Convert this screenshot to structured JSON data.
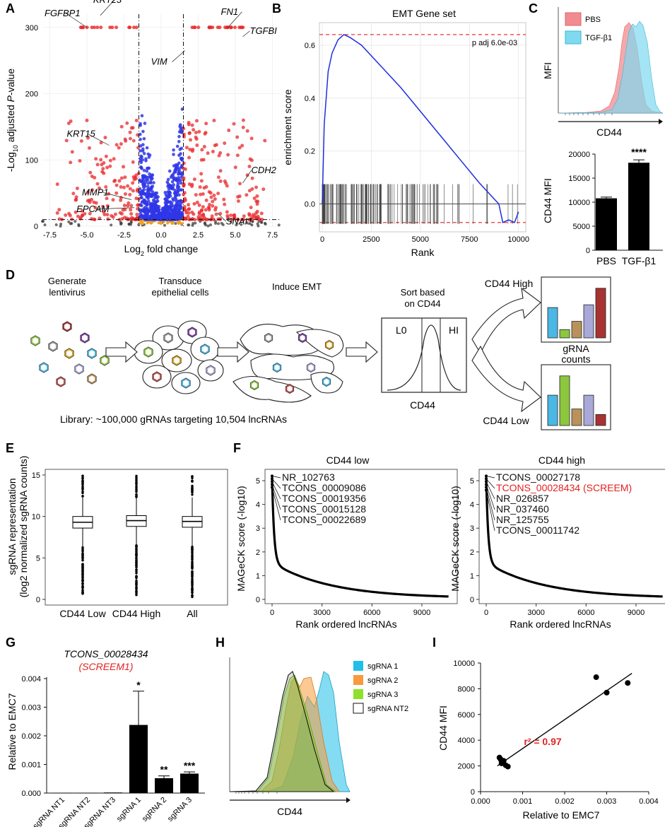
{
  "panels": [
    "A",
    "B",
    "C",
    "D",
    "E",
    "F",
    "G",
    "H",
    "I"
  ],
  "chart_data": [
    {
      "panel": "A",
      "type": "scatter",
      "title": "",
      "xlabel_main": "Log",
      "xlabel_sub": "2",
      "xlabel_rest": " fold change",
      "ylabel_pre": "-Log",
      "ylabel_sub": "10",
      "ylabel_mid": " adjusted ",
      "ylabel_italic": "P",
      "ylabel_post": "-value",
      "xlim": [
        -8,
        8
      ],
      "ylim": [
        0,
        320
      ],
      "xticks": [
        "-7.5",
        "-5.0",
        "-2.5",
        "0.0",
        "2.5",
        "5.0",
        "7.5"
      ],
      "xtick_values": [
        -7.5,
        -5,
        -2.5,
        0,
        2.5,
        5,
        7.5
      ],
      "yticks": [
        "0",
        "100",
        "200",
        "300"
      ],
      "ytick_values": [
        0,
        100,
        200,
        300
      ],
      "thresholds": {
        "x": [
          -1.5,
          1.5
        ],
        "y": 10
      },
      "labels": [
        {
          "text": "FGFBP1",
          "x": -5.0,
          "y": 300
        },
        {
          "text": "KRT23",
          "x": -4.1,
          "y": 318
        },
        {
          "text": "FN1",
          "x": 4.5,
          "y": 300
        },
        {
          "text": "TGFBI",
          "x": 5.5,
          "y": 286
        },
        {
          "text": "VIM",
          "x": 1.6,
          "y": 265
        },
        {
          "text": "KRT15",
          "x": -3.5,
          "y": 122
        },
        {
          "text": "CDH2",
          "x": 5.5,
          "y": 65
        },
        {
          "text": "MMP1",
          "x": -2.0,
          "y": 40
        },
        {
          "text": "EPCAM",
          "x": -1.8,
          "y": 28
        },
        {
          "text": "SNAI1",
          "x": 3.8,
          "y": 20
        }
      ],
      "colors": {
        "up_down": "#e8282b",
        "significant": "#2f36e6",
        "ns": "#333333",
        "low": "#f2a21a"
      }
    },
    {
      "panel": "B",
      "type": "line",
      "title": "EMT Gene set",
      "xlabel": "Rank",
      "ylabel": "enrichment score",
      "xlim": [
        0,
        10300
      ],
      "ylim": [
        -0.1,
        0.68
      ],
      "xticks": [
        "0",
        "2500",
        "5000",
        "7500",
        "10000"
      ],
      "xtick_values": [
        0,
        2500,
        5000,
        7500,
        10000
      ],
      "yticks": [
        "0.0",
        "0.2",
        "0.4",
        "0.6"
      ],
      "ytick_values": [
        0,
        0.2,
        0.4,
        0.6
      ],
      "annotation": "p adj 6.0e-03",
      "max_es": 0.64,
      "min_es": -0.07,
      "curve_x": [
        0,
        100,
        300,
        500,
        800,
        1100,
        1400,
        2000,
        3000,
        4000,
        5000,
        6000,
        7000,
        8000,
        9000,
        9200,
        9500,
        9800,
        10000
      ],
      "curve_y": [
        0,
        0.3,
        0.5,
        0.57,
        0.62,
        0.64,
        0.63,
        0.6,
        0.52,
        0.44,
        0.35,
        0.26,
        0.17,
        0.08,
        0.0,
        -0.07,
        -0.06,
        -0.07,
        -0.03
      ]
    },
    {
      "panel": "C-top",
      "type": "histogram",
      "xlabel": "CD44",
      "ylabel": "MFI",
      "series": [
        {
          "name": "PBS",
          "color": "#f28b8f"
        },
        {
          "name": "TGF-β1",
          "color": "#7fd9ef"
        }
      ]
    },
    {
      "panel": "C-bottom",
      "type": "bar",
      "categories": [
        "PBS",
        "TGF-β1"
      ],
      "values": [
        10800,
        18200
      ],
      "errors": [
        250,
        600
      ],
      "ylabel": "CD44 MFI",
      "ylim": [
        0,
        20000
      ],
      "yticks": [
        "0",
        "5000",
        "10000",
        "15000",
        "20000"
      ],
      "ytick_values": [
        0,
        5000,
        10000,
        15000,
        20000
      ],
      "significance": "****"
    },
    {
      "panel": "E",
      "type": "boxplot",
      "categories": [
        "CD44 Low",
        "CD44 High",
        "All"
      ],
      "medians": [
        9.3,
        9.5,
        9.4
      ],
      "q1": [
        8.6,
        8.8,
        8.7
      ],
      "q3": [
        10.0,
        10.1,
        10.0
      ],
      "whisker_low": [
        6.4,
        6.5,
        6.4
      ],
      "whisker_high": [
        12.3,
        12.3,
        12.3
      ],
      "outlier_range": [
        [
          0.5,
          6.4
        ],
        [
          0.5,
          6.5
        ],
        [
          0.3,
          6.4
        ]
      ],
      "ylabel_line1": "sgRNA representation",
      "ylabel_line2": "(log2 normalized sgRNA counts)",
      "ylim": [
        0,
        15
      ],
      "yticks": [
        "0",
        "5",
        "10",
        "15"
      ],
      "ytick_values": [
        0,
        5,
        10,
        15
      ]
    },
    {
      "panel": "F-low",
      "type": "line",
      "title": "CD44 low",
      "xlabel": "Rank ordered lncRNAs",
      "ylabel": "MAGeCK score (-log10)",
      "xlim": [
        0,
        10700
      ],
      "ylim": [
        0,
        5.3
      ],
      "xticks": [
        "0",
        "3000",
        "6000",
        "9000"
      ],
      "xtick_values": [
        0,
        3000,
        6000,
        9000
      ],
      "yticks": [
        "0",
        "1",
        "2",
        "3",
        "4",
        "5"
      ],
      "ytick_values": [
        0,
        1,
        2,
        3,
        4,
        5
      ],
      "labels": [
        "NR_102763",
        "TCONS_00009086",
        "TCONS_00019356",
        "TCONS_00015128",
        "TCONS_00022689"
      ]
    },
    {
      "panel": "F-high",
      "type": "line",
      "title": "CD44 high",
      "xlabel": "Rank ordered lncRNAs",
      "ylabel": "MAGeCK score (-log10)",
      "xlim": [
        0,
        10700
      ],
      "ylim": [
        0,
        5.3
      ],
      "xticks": [
        "0",
        "3000",
        "6000",
        "9000"
      ],
      "xtick_values": [
        0,
        3000,
        6000,
        9000
      ],
      "yticks": [
        "0",
        "1",
        "2",
        "3",
        "4",
        "5"
      ],
      "ytick_values": [
        0,
        1,
        2,
        3,
        4,
        5
      ],
      "labels": [
        "TCONS_00027178",
        "TCONS_00028434 (SCREEM)",
        "NR_026857",
        "NR_037460",
        "NR_125755",
        "TCONS_00011742"
      ],
      "highlight_index": 1,
      "highlight_color": "#e32222"
    },
    {
      "panel": "G",
      "type": "bar",
      "title": "TCONS_00028434",
      "subtitle": "(SCREEM1)",
      "subtitle_color": "#e32222",
      "categories": [
        "sgRNA NT1",
        "sgRNA NT2",
        "sgRNA NT3",
        "sgRNA 1",
        "sgRNA 2",
        "sgRNA 3"
      ],
      "values": [
        1e-05,
        1e-05,
        2e-05,
        0.00238,
        0.00052,
        0.00068
      ],
      "errors": [
        0,
        0,
        0,
        0.00118,
        8e-05,
        6e-05
      ],
      "significance": [
        "",
        "",
        "",
        "*",
        "**",
        "***"
      ],
      "ylabel": "Relative to EMC7",
      "ylim": [
        0,
        0.004
      ],
      "yticks": [
        "0.000",
        "0.001",
        "0.002",
        "0.003",
        "0.004"
      ],
      "ytick_values": [
        0,
        0.001,
        0.002,
        0.003,
        0.004
      ]
    },
    {
      "panel": "H",
      "type": "histogram",
      "xlabel": "CD44",
      "series": [
        {
          "name": "sgRNA 1",
          "color": "#1fbfea"
        },
        {
          "name": "sgRNA 2",
          "color": "#f99a3d"
        },
        {
          "name": "sgRNA 3",
          "color": "#8ee02a"
        },
        {
          "name": "sgRNA NT2",
          "color": "#ffffff"
        }
      ]
    },
    {
      "panel": "I",
      "type": "scatter",
      "xlabel": "Relative to EMC7",
      "ylabel": "CD44 MFI",
      "annotation": "r² = 0.97",
      "annotation_color": "#e32222",
      "x": [
        0.00275,
        0.003,
        0.0035,
        0.00045,
        0.0005,
        0.00055,
        0.0006,
        0.00065,
        0.00048
      ],
      "y": [
        8900,
        7700,
        8450,
        2650,
        2200,
        2400,
        2050,
        1950,
        2500
      ],
      "fit": {
        "x": [
          0.0004,
          0.0036
        ],
        "y": [
          2000,
          9200
        ]
      },
      "xlim": [
        0,
        0.004
      ],
      "ylim": [
        0,
        10000
      ],
      "xticks": [
        "0.000",
        "0.001",
        "0.002",
        "0.003",
        "0.004"
      ],
      "xtick_values": [
        0,
        0.001,
        0.002,
        0.003,
        0.004
      ],
      "yticks": [
        "0",
        "2000",
        "4000",
        "6000",
        "8000",
        "10000"
      ],
      "ytick_values": [
        0,
        2000,
        4000,
        6000,
        8000,
        10000
      ]
    }
  ],
  "schematic": {
    "steps": [
      "Generate",
      "lentivirus",
      "Transduce",
      "epithelial cells",
      "Induce EMT",
      "Sort based",
      "on CD44"
    ],
    "sort_low": "L0",
    "sort_high": "HI",
    "sort_axis": "CD44",
    "high_label": "CD44 High",
    "low_label": "CD44 Low",
    "counts_label_1": "gRNA",
    "counts_label_2": "counts",
    "library": "Library: ~100,000 gRNAs targeting 10,504 lncRNAs",
    "bars_high": [
      0.55,
      0.15,
      0.3,
      0.6,
      0.9
    ],
    "bars_low": [
      0.55,
      0.9,
      0.3,
      0.55,
      0.2
    ],
    "bar_colors": [
      "#4bb7e5",
      "#8dc63f",
      "#b8925a",
      "#a9a8d8",
      "#a83232"
    ]
  }
}
